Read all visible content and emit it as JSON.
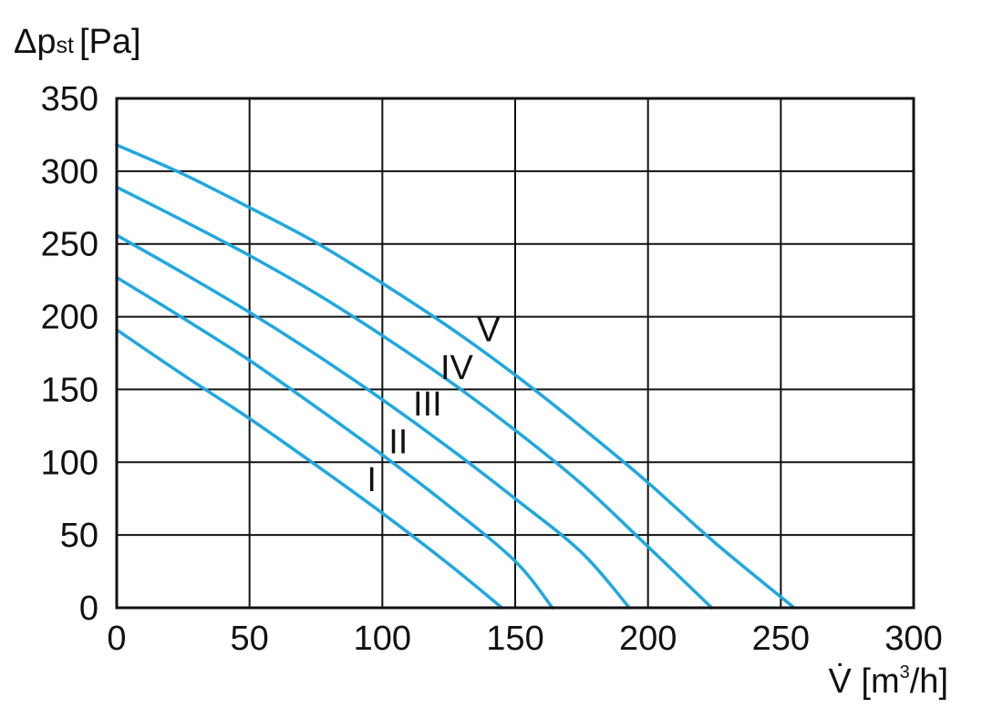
{
  "chart_data": {
    "type": "line",
    "ylabel": {
      "main": "Δp",
      "sub": "st",
      "unit": "[Pa]"
    },
    "xlabel": {
      "main": "V̇ [m",
      "sup": "3",
      "tail": "/h]"
    },
    "xlim": [
      0,
      300
    ],
    "ylim": [
      0,
      350
    ],
    "xticks": [
      "0",
      "50",
      "100",
      "150",
      "200",
      "250",
      "300"
    ],
    "yticks": [
      "0",
      "50",
      "100",
      "150",
      "200",
      "250",
      "300",
      "350"
    ],
    "grid": true,
    "line_color": "#1ea8e0",
    "series": [
      {
        "name": "I",
        "x": [
          0,
          25,
          50,
          75,
          100,
          125,
          145
        ],
        "y": [
          191,
          160,
          130,
          98,
          65,
          30,
          0
        ]
      },
      {
        "name": "II",
        "x": [
          0,
          25,
          50,
          75,
          100,
          125,
          150,
          164
        ],
        "y": [
          227,
          199,
          170,
          138,
          105,
          70,
          32,
          0
        ]
      },
      {
        "name": "III",
        "x": [
          0,
          25,
          50,
          75,
          100,
          125,
          150,
          175,
          193
        ],
        "y": [
          256,
          230,
          203,
          174,
          143,
          110,
          75,
          38,
          0
        ]
      },
      {
        "name": "IV",
        "x": [
          0,
          25,
          50,
          75,
          100,
          125,
          150,
          175,
          200,
          224
        ],
        "y": [
          289,
          266,
          242,
          216,
          187,
          156,
          122,
          85,
          42,
          0
        ]
      },
      {
        "name": "V",
        "x": [
          0,
          25,
          50,
          75,
          100,
          125,
          150,
          175,
          200,
          225,
          255
        ],
        "y": [
          318,
          298,
          275,
          251,
          223,
          193,
          160,
          124,
          86,
          45,
          0
        ]
      }
    ],
    "annotations": [
      {
        "text": "I",
        "x": 96,
        "y": 80
      },
      {
        "text": "II",
        "x": 106,
        "y": 106
      },
      {
        "text": "III",
        "x": 117,
        "y": 132
      },
      {
        "text": "IV",
        "x": 128,
        "y": 157
      },
      {
        "text": "V",
        "x": 140,
        "y": 183
      }
    ]
  }
}
